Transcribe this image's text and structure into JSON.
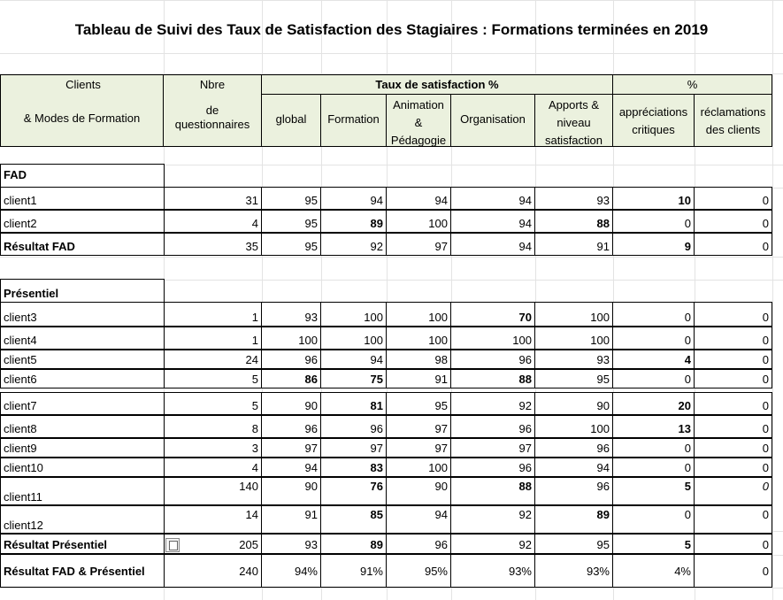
{
  "title": "Tableau de  Suivi des Taux de Satisfaction des Stagiaires :  Formations terminées en 2019",
  "header": {
    "clients": "Clients",
    "modes": "& Modes de Formation",
    "nbre": "Nbre",
    "de": "de",
    "questionnaires": "questionnaires",
    "taux": "Taux de satisfaction  %",
    "global": "global",
    "formation": "Formation",
    "animation1": "Animation",
    "animation2": "&",
    "animation3": "Pédagogie",
    "organisation": "Organisation",
    "apports1": "Apports &",
    "apports2": "niveau",
    "apports3": "satisfaction",
    "pct": "%",
    "appreciations1": "appréciations",
    "appreciations2": "critiques",
    "reclamations1": "réclamations",
    "reclamations2": "des clients"
  },
  "sections": {
    "fad": "FAD",
    "presentiel": "Présentiel"
  },
  "rows": [
    {
      "name": "client1",
      "q": "31",
      "g": "95",
      "f": "94",
      "a": "94",
      "o": "94",
      "ap": "93",
      "c": "10",
      "r": "0"
    },
    {
      "name": "client2",
      "q": "4",
      "g": "95",
      "f": "89",
      "a": "100",
      "o": "94",
      "ap": "88",
      "c": "0",
      "r": "0"
    },
    {
      "name": "Résultat FAD",
      "q": "35",
      "g": "95",
      "f": "92",
      "a": "97",
      "o": "94",
      "ap": "91",
      "c": "9",
      "r": "0"
    },
    {
      "name": "client3",
      "q": "1",
      "g": "93",
      "f": "100",
      "a": "100",
      "o": "70",
      "ap": "100",
      "c": "0",
      "r": "0"
    },
    {
      "name": "client4",
      "q": "1",
      "g": "100",
      "f": "100",
      "a": "100",
      "o": "100",
      "ap": "100",
      "c": "0",
      "r": "0"
    },
    {
      "name": "client5",
      "q": "24",
      "g": "96",
      "f": "94",
      "a": "98",
      "o": "96",
      "ap": "93",
      "c": "4",
      "r": "0"
    },
    {
      "name": "client6",
      "q": "5",
      "g": "86",
      "f": "75",
      "a": "91",
      "o": "88",
      "ap": "95",
      "c": "0",
      "r": "0"
    },
    {
      "name": "client7",
      "q": "5",
      "g": "90",
      "f": "81",
      "a": "95",
      "o": "92",
      "ap": "90",
      "c": "20",
      "r": "0"
    },
    {
      "name": "client8",
      "q": "8",
      "g": "96",
      "f": "96",
      "a": "97",
      "o": "96",
      "ap": "100",
      "c": "13",
      "r": "0"
    },
    {
      "name": "client9",
      "q": "3",
      "g": "97",
      "f": "97",
      "a": "97",
      "o": "97",
      "ap": "96",
      "c": "0",
      "r": "0"
    },
    {
      "name": "client10",
      "q": "4",
      "g": "94",
      "f": "83",
      "a": "100",
      "o": "96",
      "ap": "94",
      "c": "0",
      "r": "0"
    },
    {
      "name": "client11",
      "q": "140",
      "g": "90",
      "f": "76",
      "a": "90",
      "o": "88",
      "ap": "96",
      "c": "5",
      "r": "0"
    },
    {
      "name": "client12",
      "q": "14",
      "g": "91",
      "f": "85",
      "a": "94",
      "o": "92",
      "ap": "89",
      "c": "0",
      "r": "0"
    },
    {
      "name": "Résultat Présentiel",
      "q": "205",
      "g": "93",
      "f": "89",
      "a": "96",
      "o": "92",
      "ap": "95",
      "c": "5",
      "r": "0"
    },
    {
      "name": "Résultat FAD  & Présentiel",
      "q": "240",
      "g": "94%",
      "f": "91%",
      "a": "95%",
      "o": "93%",
      "ap": "93%",
      "c": "4%",
      "r": "0"
    }
  ]
}
